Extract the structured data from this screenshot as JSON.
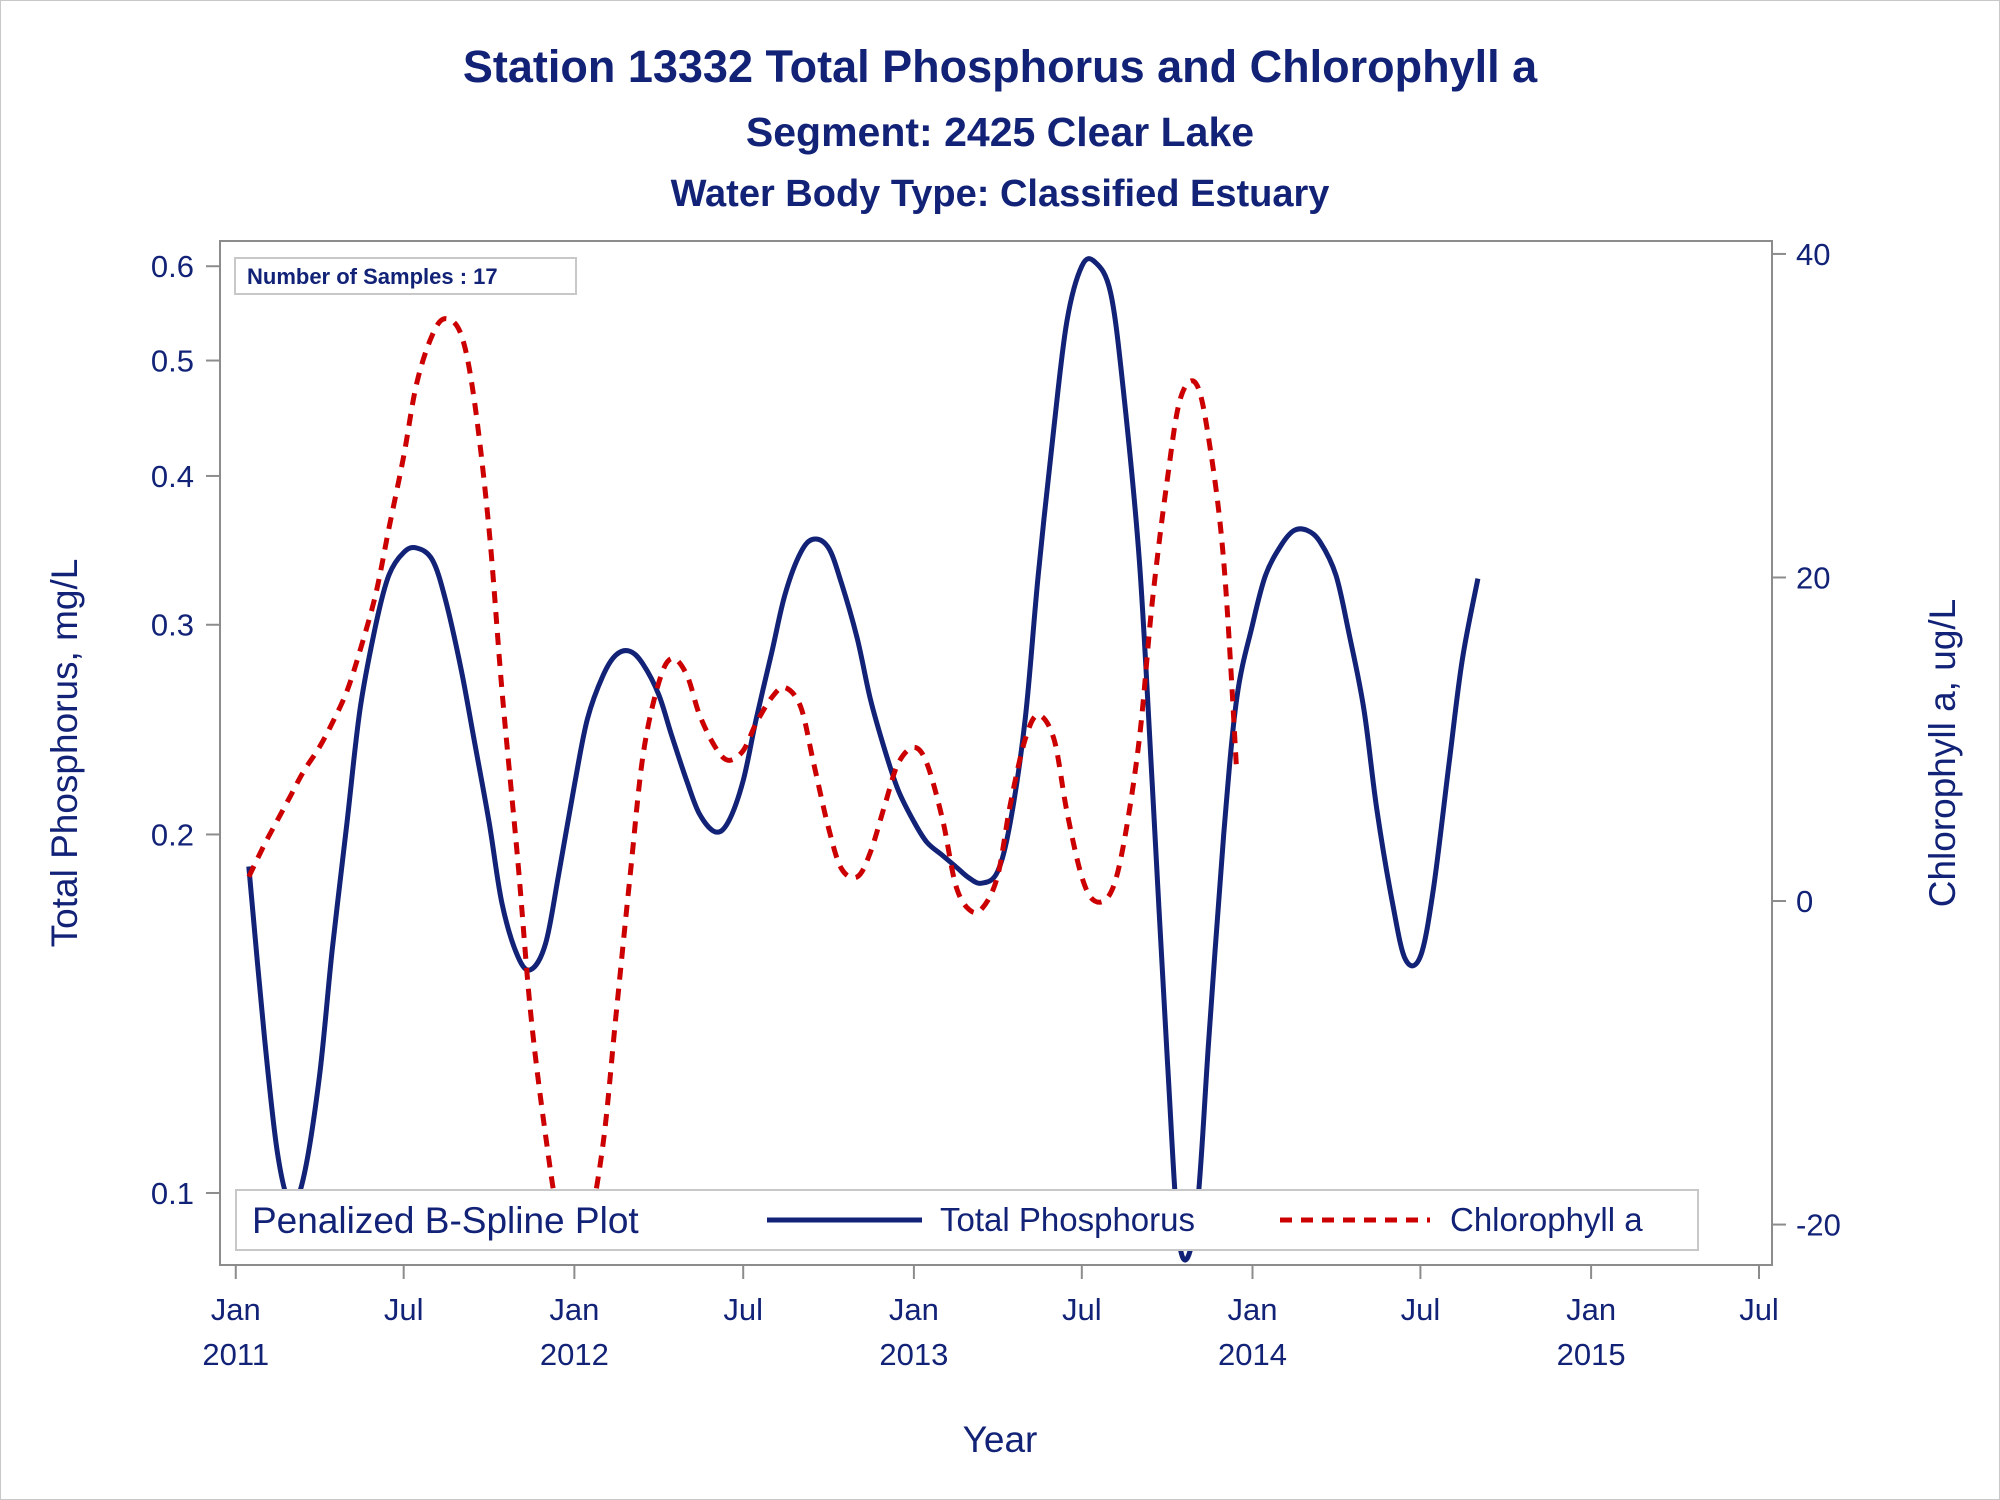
{
  "chart_data": {
    "type": "line",
    "title": "Station 13332  Total Phosphorus and Chlorophyll a",
    "subtitle": "Segment: 2425  Clear Lake",
    "subtitle2": "Water Body Type: Classified Estuary",
    "xlabel": "Year",
    "ylabel_left": "Total Phosphorus, mg/L",
    "ylabel_right": "Chlorophyll a, ug/L",
    "inset": "Number of Samples : 17",
    "legend_title": "Penalized B-Spline Plot",
    "legend_position": "bottom-inside",
    "grid": false,
    "x_range": [
      "2010-12-15",
      "2015-07-15"
    ],
    "x_ticks": [
      {
        "date": "2011-01-01",
        "label": [
          "Jan",
          "2011"
        ]
      },
      {
        "date": "2011-07-01",
        "label": [
          "Jul",
          ""
        ]
      },
      {
        "date": "2012-01-01",
        "label": [
          "Jan",
          "2012"
        ]
      },
      {
        "date": "2012-07-01",
        "label": [
          "Jul",
          ""
        ]
      },
      {
        "date": "2013-01-01",
        "label": [
          "Jan",
          "2013"
        ]
      },
      {
        "date": "2013-07-01",
        "label": [
          "Jul",
          ""
        ]
      },
      {
        "date": "2014-01-01",
        "label": [
          "Jan",
          "2014"
        ]
      },
      {
        "date": "2014-07-01",
        "label": [
          "Jul",
          ""
        ]
      },
      {
        "date": "2015-01-01",
        "label": [
          "Jan",
          "2015"
        ]
      },
      {
        "date": "2015-07-01",
        "label": [
          "Jul",
          ""
        ]
      }
    ],
    "y_left": {
      "scale": "log",
      "range": [
        0.087,
        0.63
      ],
      "ticks": [
        "0.1",
        "0.2",
        "0.3",
        "0.4",
        "0.5",
        "0.6"
      ]
    },
    "y_right": {
      "scale": "linear",
      "range": [
        -22.5,
        40.8
      ],
      "ticks": [
        "-20",
        "0",
        "20",
        "40"
      ]
    },
    "series": [
      {
        "name": "Total Phosphorus",
        "axis": "left",
        "color": "#112277",
        "style": "solid",
        "points": [
          [
            "2011-01-15",
            0.188
          ],
          [
            "2011-02-01",
            0.135
          ],
          [
            "2011-02-15",
            0.108
          ],
          [
            "2011-03-01",
            0.098
          ],
          [
            "2011-03-15",
            0.103
          ],
          [
            "2011-04-01",
            0.125
          ],
          [
            "2011-04-15",
            0.16
          ],
          [
            "2011-05-01",
            0.205
          ],
          [
            "2011-05-15",
            0.255
          ],
          [
            "2011-06-01",
            0.3
          ],
          [
            "2011-06-15",
            0.33
          ],
          [
            "2011-07-01",
            0.345
          ],
          [
            "2011-07-15",
            0.348
          ],
          [
            "2011-08-01",
            0.34
          ],
          [
            "2011-08-15",
            0.315
          ],
          [
            "2011-09-01",
            0.275
          ],
          [
            "2011-09-15",
            0.24
          ],
          [
            "2011-10-01",
            0.205
          ],
          [
            "2011-10-15",
            0.175
          ],
          [
            "2011-11-01",
            0.158
          ],
          [
            "2011-11-15",
            0.154
          ],
          [
            "2011-12-01",
            0.162
          ],
          [
            "2011-12-15",
            0.185
          ],
          [
            "2012-01-01",
            0.22
          ],
          [
            "2012-01-15",
            0.25
          ],
          [
            "2012-02-01",
            0.272
          ],
          [
            "2012-02-15",
            0.283
          ],
          [
            "2012-03-01",
            0.285
          ],
          [
            "2012-03-15",
            0.278
          ],
          [
            "2012-04-01",
            0.262
          ],
          [
            "2012-04-15",
            0.242
          ],
          [
            "2012-05-01",
            0.222
          ],
          [
            "2012-05-15",
            0.208
          ],
          [
            "2012-06-01",
            0.201
          ],
          [
            "2012-06-15",
            0.205
          ],
          [
            "2012-07-01",
            0.222
          ],
          [
            "2012-07-15",
            0.25
          ],
          [
            "2012-08-01",
            0.285
          ],
          [
            "2012-08-15",
            0.318
          ],
          [
            "2012-09-01",
            0.345
          ],
          [
            "2012-09-15",
            0.354
          ],
          [
            "2012-10-01",
            0.348
          ],
          [
            "2012-10-15",
            0.325
          ],
          [
            "2012-11-01",
            0.292
          ],
          [
            "2012-11-15",
            0.26
          ],
          [
            "2012-12-01",
            0.235
          ],
          [
            "2012-12-15",
            0.218
          ],
          [
            "2013-01-01",
            0.205
          ],
          [
            "2013-01-15",
            0.197
          ],
          [
            "2013-02-01",
            0.192
          ],
          [
            "2013-02-15",
            0.188
          ],
          [
            "2013-03-01",
            0.184
          ],
          [
            "2013-03-15",
            0.182
          ],
          [
            "2013-04-01",
            0.186
          ],
          [
            "2013-04-15",
            0.205
          ],
          [
            "2013-05-01",
            0.25
          ],
          [
            "2013-05-15",
            0.33
          ],
          [
            "2013-06-01",
            0.44
          ],
          [
            "2013-06-15",
            0.54
          ],
          [
            "2013-07-01",
            0.6
          ],
          [
            "2013-07-15",
            0.605
          ],
          [
            "2013-08-01",
            0.57
          ],
          [
            "2013-08-15",
            0.47
          ],
          [
            "2013-09-01",
            0.34
          ],
          [
            "2013-09-15",
            0.22
          ],
          [
            "2013-10-01",
            0.13
          ],
          [
            "2013-10-15",
            0.09
          ],
          [
            "2013-11-01",
            0.095
          ],
          [
            "2013-11-15",
            0.135
          ],
          [
            "2013-12-01",
            0.2
          ],
          [
            "2013-12-15",
            0.26
          ],
          [
            "2014-01-01",
            0.3
          ],
          [
            "2014-01-15",
            0.33
          ],
          [
            "2014-02-01",
            0.35
          ],
          [
            "2014-02-15",
            0.36
          ],
          [
            "2014-03-01",
            0.36
          ],
          [
            "2014-03-15",
            0.352
          ],
          [
            "2014-04-01",
            0.33
          ],
          [
            "2014-04-15",
            0.295
          ],
          [
            "2014-05-01",
            0.255
          ],
          [
            "2014-05-15",
            0.21
          ],
          [
            "2014-06-01",
            0.175
          ],
          [
            "2014-06-15",
            0.157
          ],
          [
            "2014-07-01",
            0.158
          ],
          [
            "2014-07-15",
            0.18
          ],
          [
            "2014-08-01",
            0.23
          ],
          [
            "2014-08-15",
            0.28
          ],
          [
            "2014-09-01",
            0.328
          ]
        ]
      },
      {
        "name": "Chlorophyll a",
        "axis": "right",
        "color": "#cc0000",
        "style": "dashed",
        "points": [
          [
            "2011-01-15",
            1.5
          ],
          [
            "2011-02-01",
            3.5
          ],
          [
            "2011-02-15",
            5.0
          ],
          [
            "2011-03-01",
            6.5
          ],
          [
            "2011-03-15",
            8.0
          ],
          [
            "2011-04-01",
            9.5
          ],
          [
            "2011-04-15",
            11.0
          ],
          [
            "2011-05-01",
            13.0
          ],
          [
            "2011-05-15",
            15.5
          ],
          [
            "2011-06-01",
            19.0
          ],
          [
            "2011-06-15",
            23.0
          ],
          [
            "2011-07-01",
            27.5
          ],
          [
            "2011-07-15",
            32.0
          ],
          [
            "2011-08-01",
            35.0
          ],
          [
            "2011-08-15",
            36.0
          ],
          [
            "2011-09-01",
            35.0
          ],
          [
            "2011-09-15",
            31.0
          ],
          [
            "2011-10-01",
            23.0
          ],
          [
            "2011-10-15",
            13.0
          ],
          [
            "2011-11-01",
            2.5
          ],
          [
            "2011-11-15",
            -7.0
          ],
          [
            "2011-12-01",
            -14.5
          ],
          [
            "2011-12-15",
            -19.5
          ],
          [
            "2012-01-01",
            -21.5
          ],
          [
            "2012-01-15",
            -20.5
          ],
          [
            "2012-02-01",
            -15.0
          ],
          [
            "2012-02-15",
            -7.0
          ],
          [
            "2012-03-01",
            1.5
          ],
          [
            "2012-03-15",
            9.0
          ],
          [
            "2012-04-01",
            13.5
          ],
          [
            "2012-04-15",
            15.0
          ],
          [
            "2012-05-01",
            14.0
          ],
          [
            "2012-05-15",
            11.5
          ],
          [
            "2012-06-01",
            9.5
          ],
          [
            "2012-06-15",
            8.7
          ],
          [
            "2012-07-01",
            9.3
          ],
          [
            "2012-07-15",
            11.0
          ],
          [
            "2012-08-01",
            12.6
          ],
          [
            "2012-08-15",
            13.2
          ],
          [
            "2012-09-01",
            12.0
          ],
          [
            "2012-09-15",
            8.5
          ],
          [
            "2012-10-01",
            4.5
          ],
          [
            "2012-10-15",
            2.0
          ],
          [
            "2012-11-01",
            1.5
          ],
          [
            "2012-11-15",
            3.0
          ],
          [
            "2012-12-01",
            6.0
          ],
          [
            "2012-12-15",
            8.5
          ],
          [
            "2013-01-01",
            9.5
          ],
          [
            "2013-01-15",
            8.5
          ],
          [
            "2013-02-01",
            5.0
          ],
          [
            "2013-02-15",
            1.0
          ],
          [
            "2013-03-01",
            -0.5
          ],
          [
            "2013-03-15",
            -0.5
          ],
          [
            "2013-04-01",
            1.5
          ],
          [
            "2013-04-15",
            6.0
          ],
          [
            "2013-05-01",
            10.0
          ],
          [
            "2013-05-15",
            11.5
          ],
          [
            "2013-06-01",
            10.0
          ],
          [
            "2013-06-15",
            5.5
          ],
          [
            "2013-07-01",
            1.5
          ],
          [
            "2013-07-15",
            0.0
          ],
          [
            "2013-08-01",
            0.5
          ],
          [
            "2013-08-15",
            3.5
          ],
          [
            "2013-09-01",
            10.0
          ],
          [
            "2013-09-15",
            18.5
          ],
          [
            "2013-10-01",
            26.0
          ],
          [
            "2013-10-15",
            31.0
          ],
          [
            "2013-11-01",
            32.0
          ],
          [
            "2013-11-15",
            28.5
          ],
          [
            "2013-12-01",
            21.0
          ],
          [
            "2013-12-15",
            8.0
          ]
        ]
      }
    ]
  }
}
